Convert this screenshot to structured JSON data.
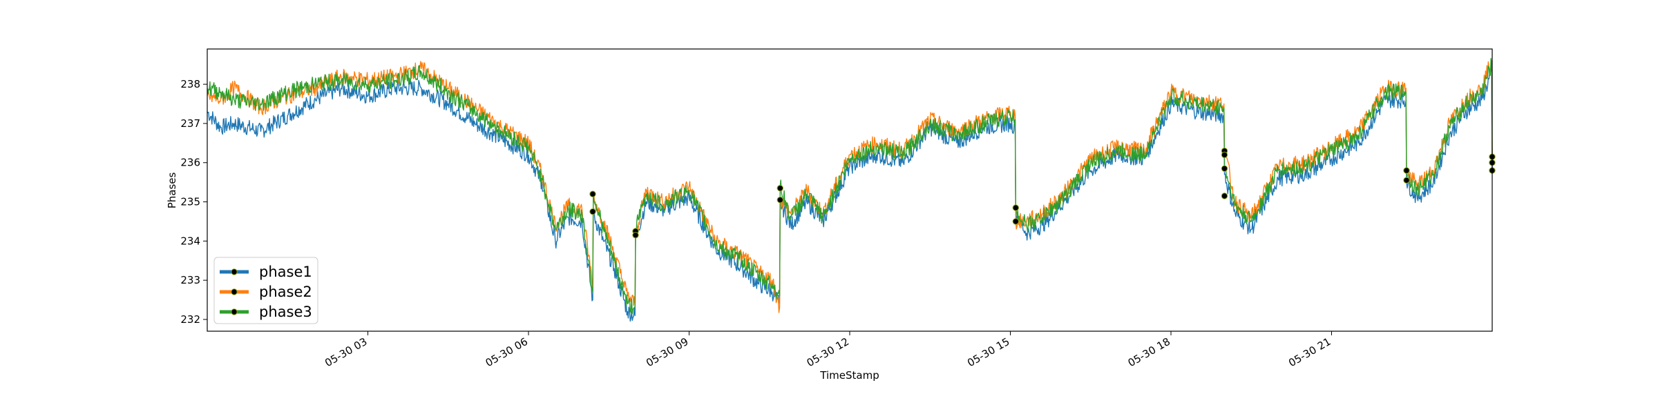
{
  "chart_data": {
    "type": "line",
    "title": "",
    "xlabel": "TimeStamp",
    "ylabel": "Phases",
    "xlim": [
      0,
      24
    ],
    "ylim": [
      231.7,
      238.9
    ],
    "x_ticks": [
      {
        "x": 3,
        "label": "05-30 03"
      },
      {
        "x": 6,
        "label": "05-30 06"
      },
      {
        "x": 9,
        "label": "05-30 09"
      },
      {
        "x": 12,
        "label": "05-30 12"
      },
      {
        "x": 15,
        "label": "05-30 15"
      },
      {
        "x": 18,
        "label": "05-30 18"
      },
      {
        "x": 21,
        "label": "05-30 21"
      }
    ],
    "y_ticks": [
      {
        "y": 232,
        "label": "232"
      },
      {
        "y": 233,
        "label": "233"
      },
      {
        "y": 234,
        "label": "234"
      },
      {
        "y": 235,
        "label": "235"
      },
      {
        "y": 236,
        "label": "236"
      },
      {
        "y": 237,
        "label": "237"
      },
      {
        "y": 238,
        "label": "238"
      }
    ],
    "grid": false,
    "legend_position": "lower-left",
    "x": [
      0.0,
      0.25,
      0.5,
      1.0,
      1.5,
      2.0,
      2.5,
      3.0,
      3.5,
      4.0,
      4.5,
      5.0,
      5.5,
      6.0,
      6.25,
      6.5,
      6.75,
      7.0,
      7.2,
      7.21,
      7.4,
      7.6,
      7.85,
      7.99,
      8.0,
      8.2,
      8.5,
      9.0,
      9.5,
      10.0,
      10.3,
      10.55,
      10.69,
      10.7,
      10.9,
      11.2,
      11.5,
      12.0,
      12.5,
      13.0,
      13.5,
      14.0,
      14.5,
      15.0,
      15.09,
      15.1,
      15.3,
      15.6,
      16.0,
      16.5,
      17.0,
      17.5,
      18.0,
      18.5,
      18.99,
      19.0,
      19.2,
      19.5,
      20.0,
      20.5,
      21.0,
      21.5,
      22.0,
      22.39,
      22.4,
      22.6,
      22.9,
      23.2,
      23.5,
      23.8,
      23.99,
      24.0
    ],
    "series": [
      {
        "name": "phase1",
        "color": "#1f77b4",
        "values": [
          237.3,
          236.9,
          237.0,
          236.8,
          237.2,
          237.6,
          237.9,
          237.7,
          237.9,
          237.9,
          237.5,
          237.0,
          236.6,
          236.2,
          235.5,
          234.0,
          234.6,
          234.5,
          232.5,
          234.7,
          234.0,
          233.3,
          232.2,
          232.1,
          234.1,
          235.0,
          234.8,
          235.1,
          233.8,
          233.3,
          232.9,
          232.7,
          232.4,
          235.0,
          234.4,
          235.0,
          234.5,
          235.9,
          236.2,
          236.0,
          236.9,
          236.5,
          236.9,
          237.0,
          236.9,
          234.7,
          234.2,
          234.4,
          235.0,
          235.8,
          236.2,
          236.1,
          237.5,
          237.3,
          237.2,
          235.7,
          234.7,
          234.3,
          235.6,
          235.7,
          236.1,
          236.5,
          237.6,
          237.6,
          235.5,
          235.1,
          235.5,
          236.7,
          237.3,
          237.6,
          238.3,
          235.8
        ]
      },
      {
        "name": "phase2",
        "color": "#ff7f0e",
        "values": [
          237.7,
          237.6,
          237.9,
          237.4,
          237.7,
          237.9,
          238.2,
          238.1,
          238.2,
          238.4,
          237.9,
          237.4,
          236.9,
          236.5,
          235.7,
          234.4,
          234.9,
          234.8,
          232.9,
          235.1,
          234.5,
          233.7,
          232.6,
          232.4,
          234.2,
          235.3,
          235.0,
          235.4,
          234.0,
          233.6,
          233.2,
          233.0,
          232.3,
          235.1,
          234.7,
          235.3,
          234.7,
          236.2,
          236.5,
          236.3,
          237.1,
          236.8,
          237.1,
          237.3,
          237.2,
          234.5,
          234.5,
          234.7,
          235.2,
          236.1,
          236.4,
          236.3,
          237.8,
          237.6,
          237.5,
          236.3,
          235.0,
          234.6,
          235.9,
          236.0,
          236.4,
          236.8,
          237.9,
          237.9,
          235.8,
          235.4,
          235.8,
          237.0,
          237.6,
          237.9,
          238.6,
          236.2
        ]
      },
      {
        "name": "phase3",
        "color": "#2ca02c",
        "values": [
          237.9,
          237.8,
          237.6,
          237.5,
          237.8,
          238.0,
          238.1,
          238.0,
          238.1,
          238.3,
          237.8,
          237.3,
          236.8,
          236.4,
          235.6,
          234.3,
          234.8,
          234.7,
          232.7,
          235.2,
          234.3,
          233.5,
          232.4,
          232.3,
          234.3,
          235.2,
          234.9,
          235.3,
          233.9,
          233.5,
          233.1,
          232.9,
          232.6,
          235.4,
          234.6,
          235.2,
          234.6,
          236.1,
          236.4,
          236.2,
          237.0,
          236.7,
          237.0,
          237.2,
          237.1,
          234.8,
          234.4,
          234.6,
          235.1,
          236.0,
          236.3,
          236.2,
          237.7,
          237.5,
          237.4,
          235.9,
          234.9,
          234.5,
          235.8,
          235.9,
          236.3,
          236.7,
          237.8,
          237.8,
          235.7,
          235.3,
          235.7,
          236.9,
          237.5,
          237.8,
          238.5,
          236.0
        ]
      }
    ],
    "highlighted_points": [
      {
        "x": 7.2,
        "y": 235.2
      },
      {
        "x": 7.2,
        "y": 234.75
      },
      {
        "x": 8.0,
        "y": 234.25
      },
      {
        "x": 8.0,
        "y": 234.15
      },
      {
        "x": 10.7,
        "y": 235.35
      },
      {
        "x": 10.7,
        "y": 235.05
      },
      {
        "x": 15.1,
        "y": 234.85
      },
      {
        "x": 15.1,
        "y": 234.5
      },
      {
        "x": 19.0,
        "y": 236.3
      },
      {
        "x": 19.0,
        "y": 236.2
      },
      {
        "x": 19.0,
        "y": 235.85
      },
      {
        "x": 19.0,
        "y": 235.15
      },
      {
        "x": 22.4,
        "y": 235.8
      },
      {
        "x": 22.4,
        "y": 235.55
      },
      {
        "x": 24.0,
        "y": 236.15
      },
      {
        "x": 24.0,
        "y": 236.0
      },
      {
        "x": 24.0,
        "y": 235.8
      }
    ]
  }
}
